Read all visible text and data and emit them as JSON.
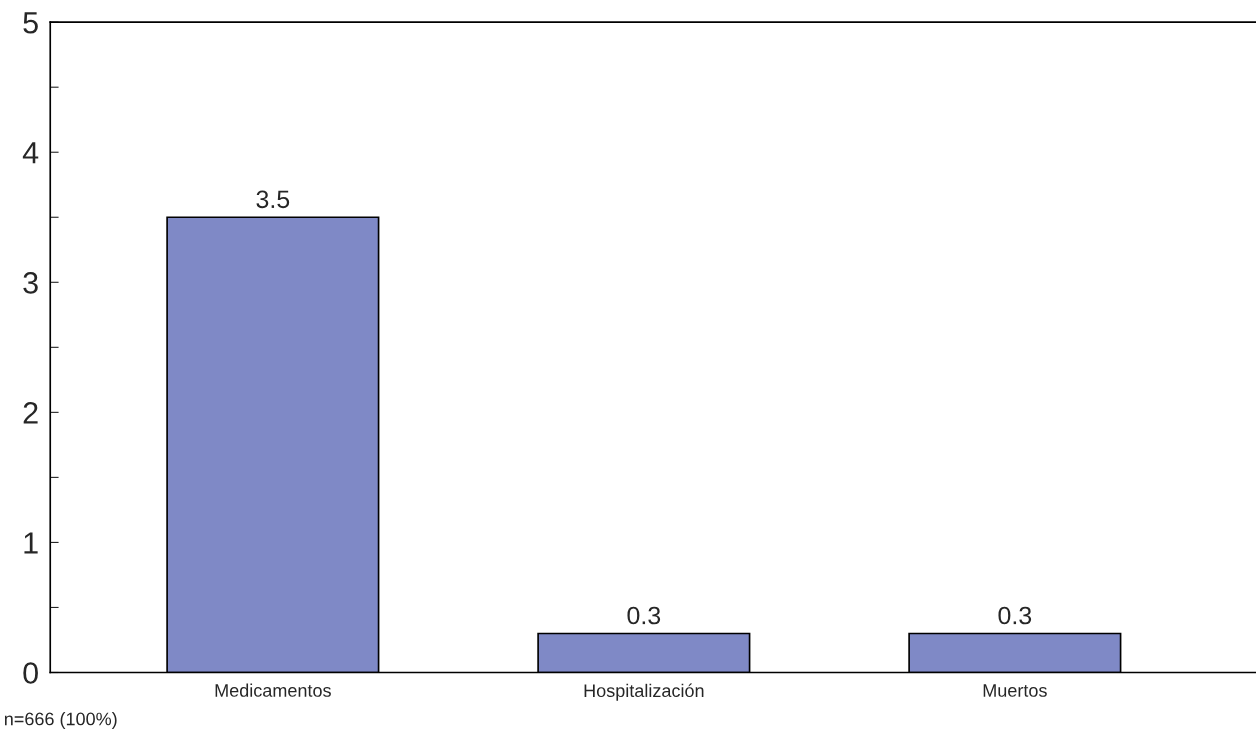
{
  "chart_data": {
    "type": "bar",
    "categories": [
      "Medicamentos",
      "Hospitalización",
      "Muertos"
    ],
    "values": [
      3.5,
      0.3,
      0.3
    ],
    "color": "#7f89c6",
    "ylim": [
      0,
      5
    ],
    "yticks": [
      0,
      {
        "value": 0.5,
        "label": null
      },
      1,
      {
        "value": 1.5,
        "label": null
      },
      2,
      {
        "value": 2.5,
        "label": null
      },
      3,
      {
        "value": 3.5,
        "label": null
      },
      4,
      {
        "value": 4.5,
        "label": null
      },
      5
    ],
    "data_labels": true,
    "grid": false,
    "annotations": [
      "n=666 (100%)"
    ]
  }
}
